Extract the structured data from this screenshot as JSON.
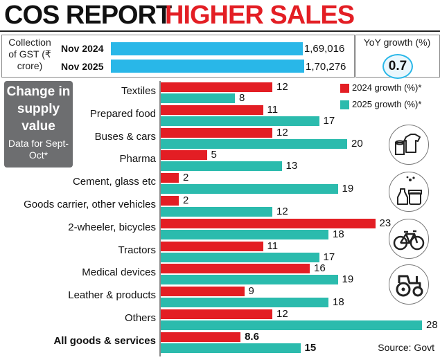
{
  "header": {
    "title_black": "COS REPORT",
    "title_red": "HIGHER SALES"
  },
  "gst": {
    "label": "Collection of GST (₹ crore)",
    "rows": [
      {
        "year": "Nov 2024",
        "value_text": "1,69,016",
        "value": 169016
      },
      {
        "year": "Nov 2025",
        "value_text": "1,70,276",
        "value": 170276
      }
    ],
    "yoy_label": "YoY growth (%)",
    "yoy_value": "0.7"
  },
  "sidebar": {
    "heading": "Change in supply value",
    "subheading": "Data for Sept-Oct*"
  },
  "legend": {
    "s2024": "2024 growth (%)*",
    "s2025": "2025 growth (%)*"
  },
  "colors": {
    "red": "#e31e24",
    "teal": "#2bbbad",
    "blue": "#29b7e8"
  },
  "icons": [
    "textiles-icon",
    "chemicals-icon",
    "bicycle-icon",
    "tractor-icon"
  ],
  "source": "Source: Govt",
  "chart_data": {
    "type": "bar",
    "orientation": "horizontal",
    "title": "Change in supply value",
    "subtitle": "Data for Sept-Oct*",
    "categories": [
      "Textiles",
      "Prepared food",
      "Buses & cars",
      "Pharma",
      "Cement, glass etc",
      "Goods carrier, other vehicles",
      "2-wheeler, bicycles",
      "Tractors",
      "Medical devices",
      "Leather & products",
      "Others",
      "All goods & services"
    ],
    "series": [
      {
        "name": "2024 growth (%)*",
        "values": [
          12,
          11,
          12,
          5,
          2,
          2,
          23,
          11,
          16,
          9,
          12,
          8.6
        ]
      },
      {
        "name": "2025 growth (%)*",
        "values": [
          8,
          17,
          20,
          13,
          19,
          12,
          18,
          17,
          19,
          18,
          28,
          15
        ]
      }
    ],
    "xlim": [
      0,
      28
    ],
    "legend": "top-right"
  }
}
